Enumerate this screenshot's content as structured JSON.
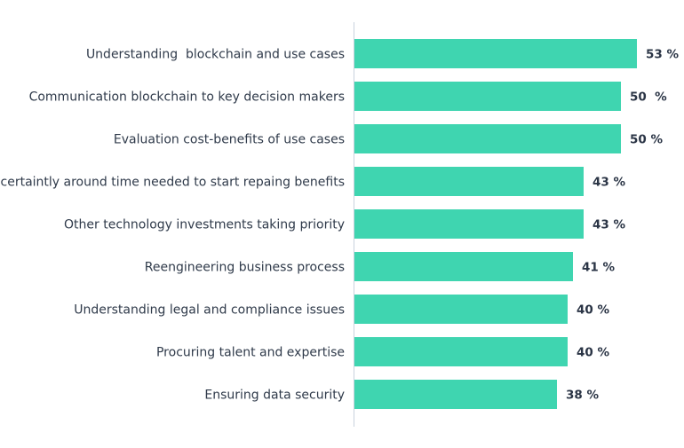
{
  "chart_data": {
    "type": "bar",
    "orientation": "horizontal",
    "title": "",
    "xlabel": "",
    "ylabel": "",
    "xlim": [
      0,
      60
    ],
    "grid": false,
    "bar_color": "#3fd5b0",
    "categories": [
      "Understanding  blockchain and use cases",
      "Communication blockchain to key decision makers",
      "Evaluation cost-benefits of use cases",
      "Uncertaintly around time needed to start repaing benefits",
      "Other technology investments taking priority",
      "Reengineering business process",
      "Understanding legal and compliance issues",
      "Procuring talent and expertise",
      "Ensuring data security"
    ],
    "values": [
      53,
      50,
      50,
      43,
      43,
      41,
      40,
      40,
      38
    ],
    "value_labels": [
      "53 %",
      "50  %",
      "50 %",
      "43 %",
      "43 %",
      "41 %",
      "40 %",
      "40 %",
      "38 %"
    ]
  }
}
